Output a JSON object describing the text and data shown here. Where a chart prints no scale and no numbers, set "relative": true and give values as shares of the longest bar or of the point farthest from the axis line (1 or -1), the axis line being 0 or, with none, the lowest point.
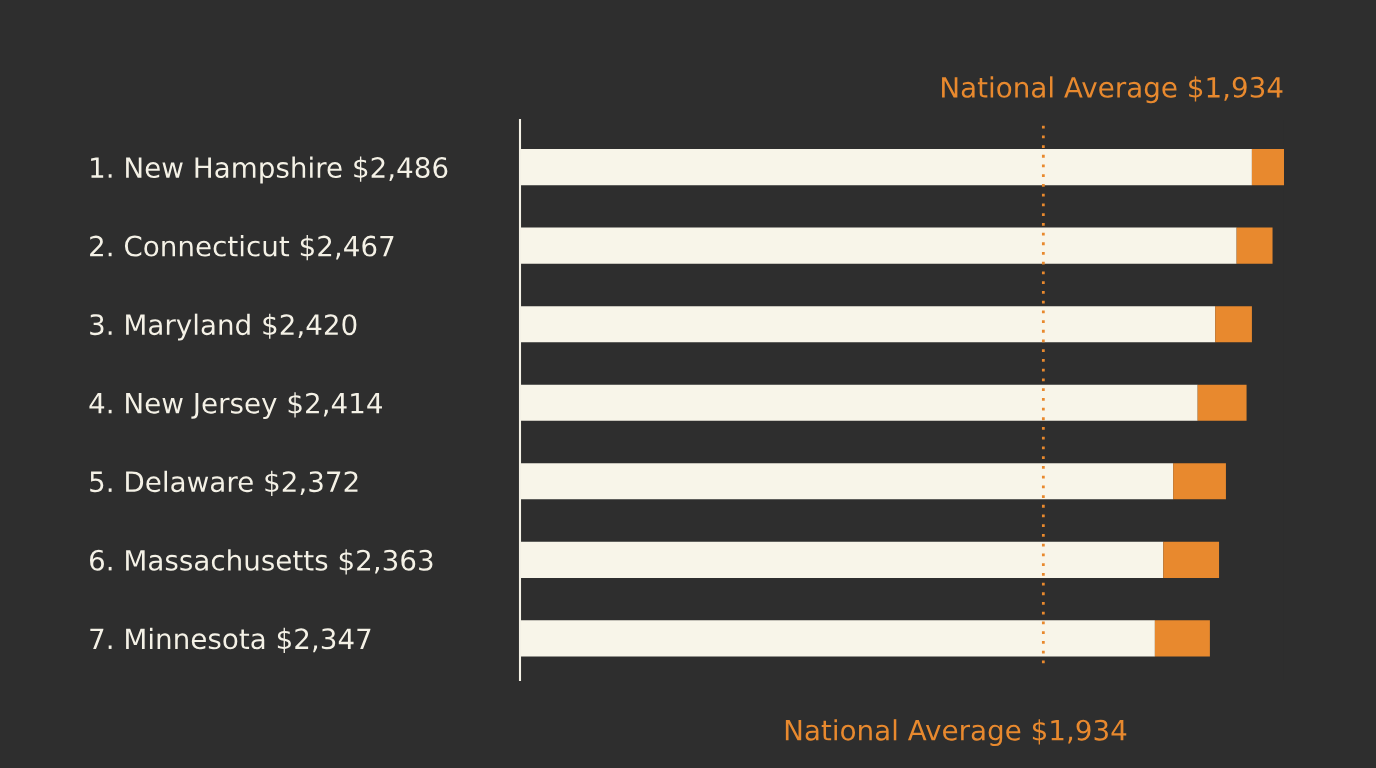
{
  "chart_data": {
    "type": "bar",
    "orientation": "horizontal",
    "stacked": true,
    "relative": true,
    "categories": [
      "1. New Hampshire $2,486",
      "2. Connecticut $2,467",
      "3. Maryland $2,420",
      "4. New Jersey $2,414",
      "5. Delaware $2,372",
      "6. Massachusetts $2,363",
      "7. Minnesota $2,347"
    ],
    "series": [
      {
        "color": "#f8f5e9",
        "values": [
          0.958,
          0.938,
          0.91,
          0.887,
          0.855,
          0.842,
          0.831
        ]
      },
      {
        "color": "#e8892e",
        "values": [
          0.042,
          0.047,
          0.048,
          0.064,
          0.069,
          0.073,
          0.072
        ]
      }
    ],
    "ref_lines": [
      {
        "axis": "x",
        "value": 0.685,
        "label": "National Average $1,934",
        "color": "#e8892e",
        "line_style": "dotted"
      }
    ],
    "annotations": [
      "National Average $1,934"
    ],
    "grid": false,
    "legend": false
  }
}
